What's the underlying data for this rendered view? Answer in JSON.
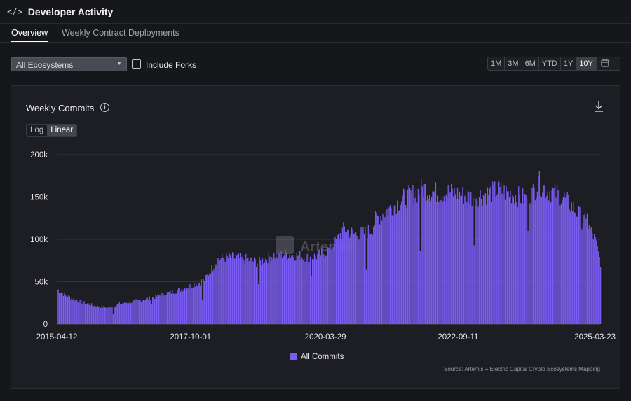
{
  "header": {
    "icon": "code-icon",
    "title": "Developer Activity"
  },
  "tabs": [
    {
      "label": "Overview",
      "active": true
    },
    {
      "label": "Weekly Contract Deployments",
      "active": false
    }
  ],
  "filters": {
    "ecosystem_value": "All Ecosystems",
    "include_forks_label": "Include Forks",
    "include_forks_checked": false
  },
  "range_buttons": [
    "1M",
    "3M",
    "6M",
    "YTD",
    "1Y",
    "10Y"
  ],
  "range_active": "10Y",
  "card": {
    "title": "Weekly Commits",
    "scale_buttons": [
      "Log",
      "Linear"
    ],
    "scale_active": "Linear",
    "watermark": "Artemis",
    "source": "Source: Artemis + Electric Capital Crypto Ecosystems Mapping"
  },
  "colors": {
    "accent": "#7b5cf5",
    "background": "#16171b",
    "card": "#1d1e23"
  },
  "chart_data": {
    "type": "bar",
    "ylim": [
      0,
      200000
    ],
    "yticks": [
      0,
      50000,
      100000,
      150000,
      200000
    ],
    "ytick_labels": [
      "0",
      "50k",
      "100k",
      "150k",
      "200k"
    ],
    "xtick_labels": [
      "2015-04-12",
      "2017-10-01",
      "2020-03-29",
      "2022-09-11",
      "2025-03-23"
    ],
    "grid": true,
    "legend_position": "bottom",
    "series": [
      {
        "name": "All Commits",
        "x_range": [
          "2015-04-12",
          "2025-04-27"
        ],
        "frequency": "weekly",
        "anchors": [
          [
            "2015-04-12",
            42000
          ],
          [
            "2015-06-01",
            35000
          ],
          [
            "2015-10-01",
            26000
          ],
          [
            "2016-01-10",
            21000
          ],
          [
            "2016-04-01",
            20000
          ],
          [
            "2016-06-01",
            24000
          ],
          [
            "2016-10-01",
            28000
          ],
          [
            "2017-01-01",
            31000
          ],
          [
            "2017-04-01",
            36000
          ],
          [
            "2017-07-01",
            40000
          ],
          [
            "2017-10-01",
            46000
          ],
          [
            "2018-01-01",
            53000
          ],
          [
            "2018-02-15",
            66000
          ],
          [
            "2018-04-01",
            78000
          ],
          [
            "2018-07-01",
            80000
          ],
          [
            "2018-10-01",
            78000
          ],
          [
            "2019-01-01",
            74000
          ],
          [
            "2019-04-01",
            82000
          ],
          [
            "2019-07-01",
            84000
          ],
          [
            "2019-10-01",
            82000
          ],
          [
            "2020-01-01",
            80000
          ],
          [
            "2020-03-29",
            86000
          ],
          [
            "2020-06-01",
            98000
          ],
          [
            "2020-08-01",
            115000
          ],
          [
            "2020-10-01",
            108000
          ],
          [
            "2020-12-01",
            108000
          ],
          [
            "2021-02-01",
            113000
          ],
          [
            "2021-03-01",
            126000
          ],
          [
            "2021-06-01",
            138000
          ],
          [
            "2021-09-01",
            150000
          ],
          [
            "2021-12-01",
            157000
          ],
          [
            "2022-01-15",
            163000
          ],
          [
            "2022-04-01",
            158000
          ],
          [
            "2022-07-01",
            158000
          ],
          [
            "2022-09-11",
            156000
          ],
          [
            "2022-12-01",
            152000
          ],
          [
            "2023-03-01",
            155000
          ],
          [
            "2023-06-01",
            160000
          ],
          [
            "2023-09-01",
            156000
          ],
          [
            "2023-12-01",
            150000
          ],
          [
            "2024-02-01",
            158000
          ],
          [
            "2024-03-01",
            170000
          ],
          [
            "2024-05-01",
            160000
          ],
          [
            "2024-08-01",
            155000
          ],
          [
            "2024-11-01",
            138000
          ],
          [
            "2025-02-01",
            118000
          ],
          [
            "2025-03-23",
            100000
          ],
          [
            "2025-04-27",
            74000
          ]
        ],
        "dips": [
          [
            "2016-04-24",
            12000
          ],
          [
            "2017-01-08",
            24000
          ],
          [
            "2017-12-17",
            28000
          ],
          [
            "2018-12-30",
            47000
          ],
          [
            "2019-12-22",
            56000
          ],
          [
            "2020-12-27",
            64000
          ],
          [
            "2021-12-26",
            86000
          ],
          [
            "2022-12-25",
            93000
          ],
          [
            "2023-12-24",
            110000
          ],
          [
            "2024-12-22",
            112000
          ]
        ],
        "spikes": [
          [
            "2025-01-26",
            130000
          ],
          [
            "2024-03-03",
            174000
          ]
        ]
      }
    ]
  }
}
